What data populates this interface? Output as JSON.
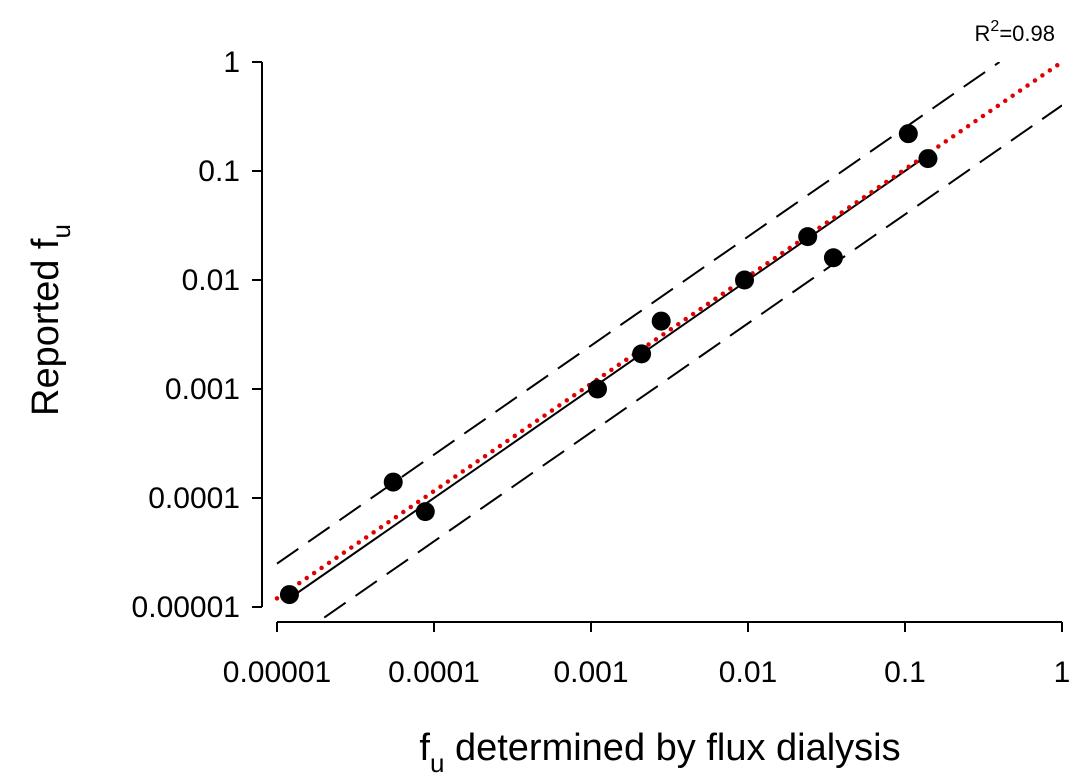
{
  "chart_data": {
    "type": "scatter",
    "xscale": "log",
    "yscale": "log",
    "xlim": [
      1e-05,
      1
    ],
    "ylim": [
      1e-05,
      1
    ],
    "x_ticks": [
      {
        "value": 1e-05,
        "label": "0.00001"
      },
      {
        "value": 0.0001,
        "label": "0.0001"
      },
      {
        "value": 0.001,
        "label": "0.001"
      },
      {
        "value": 0.01,
        "label": "0.01"
      },
      {
        "value": 0.1,
        "label": "0.1"
      },
      {
        "value": 1,
        "label": "1"
      }
    ],
    "y_ticks": [
      {
        "value": 1e-05,
        "label": "0.00001"
      },
      {
        "value": 0.0001,
        "label": "0.0001"
      },
      {
        "value": 0.001,
        "label": "0.001"
      },
      {
        "value": 0.01,
        "label": "0.01"
      },
      {
        "value": 0.1,
        "label": "0.1"
      },
      {
        "value": 1,
        "label": "1"
      }
    ],
    "xlabel": {
      "base": "f",
      "subscript": "u",
      "rest": " determined by flux dialysis"
    },
    "ylabel": {
      "base": "Reported f",
      "subscript": "u"
    },
    "annotation": {
      "base": "R",
      "superscript": "2",
      "rest": "=0.98"
    },
    "grid": false,
    "points": [
      {
        "x": 1.2e-05,
        "y": 1.3e-05
      },
      {
        "x": 5.5e-05,
        "y": 0.00014
      },
      {
        "x": 8.8e-05,
        "y": 7.5e-05
      },
      {
        "x": 0.0011,
        "y": 0.001
      },
      {
        "x": 0.0021,
        "y": 0.0021
      },
      {
        "x": 0.0028,
        "y": 0.0042
      },
      {
        "x": 0.0095,
        "y": 0.01
      },
      {
        "x": 0.024,
        "y": 0.025
      },
      {
        "x": 0.035,
        "y": 0.016
      },
      {
        "x": 0.105,
        "y": 0.22
      },
      {
        "x": 0.14,
        "y": 0.13
      }
    ],
    "lines": [
      {
        "style": "solid",
        "color": "#000000",
        "x": [
          1.2e-05,
          0.14
        ],
        "y": [
          1.2e-05,
          0.14
        ]
      },
      {
        "style": "dashed",
        "color": "#000000",
        "x": [
          1e-05,
          0.4
        ],
        "y": [
          2.5e-05,
          1
        ]
      },
      {
        "style": "dashed",
        "color": "#000000",
        "x": [
          2e-05,
          1
        ],
        "y": [
          8e-06,
          0.4
        ]
      },
      {
        "style": "dotted",
        "color": "#e00000",
        "x": [
          1e-05,
          1
        ],
        "y": [
          1.2e-05,
          1
        ]
      }
    ]
  }
}
